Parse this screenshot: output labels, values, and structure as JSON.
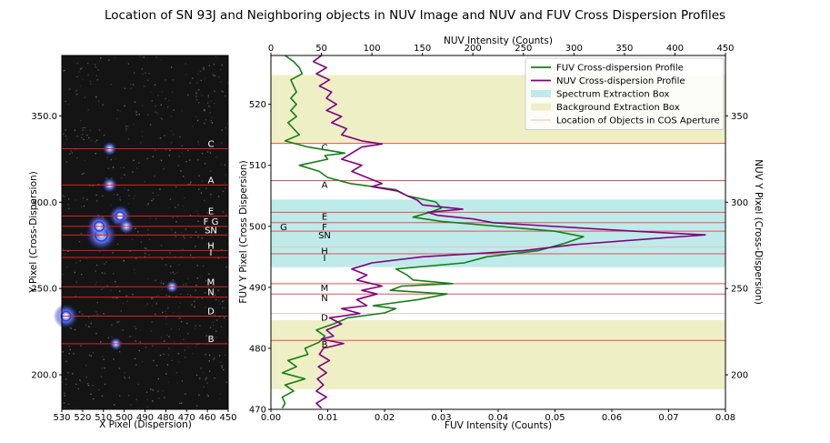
{
  "title": "Location of SN 93J and Neighboring objects in NUV Image and NUV and FUV Cross Dispersion Profiles",
  "chart_data": [
    {
      "type": "image",
      "xlabel": "X Pixel (Dispersion)",
      "ylabel": "Y Pixel (Cross-Dispersion)",
      "xlim": [
        530,
        450
      ],
      "ylim": [
        180,
        385
      ],
      "xticks": [
        "530",
        "520",
        "510",
        "500",
        "490",
        "480",
        "470",
        "460",
        "450"
      ],
      "yticks": [
        "200.0",
        "250.0",
        "300.0",
        "350.0"
      ],
      "object_lines": [
        {
          "label": "C",
          "y": 331
        },
        {
          "label": "A",
          "y": 310
        },
        {
          "label": "E",
          "y": 292
        },
        {
          "label": "F G",
          "y": 286
        },
        {
          "label": "SN",
          "y": 281
        },
        {
          "label": "H",
          "y": 272
        },
        {
          "label": "I",
          "y": 268
        },
        {
          "label": "M",
          "y": 251
        },
        {
          "label": "N",
          "y": 245
        },
        {
          "label": "D",
          "y": 234
        },
        {
          "label": "B",
          "y": 218
        }
      ],
      "sources": [
        {
          "x": 511,
          "y": 281,
          "strength": 1.0
        },
        {
          "x": 512,
          "y": 286,
          "strength": 0.7
        },
        {
          "x": 502,
          "y": 292,
          "strength": 0.6
        },
        {
          "x": 528,
          "y": 234,
          "strength": 0.7
        },
        {
          "x": 507,
          "y": 310,
          "strength": 0.3
        },
        {
          "x": 507,
          "y": 331,
          "strength": 0.25
        },
        {
          "x": 499,
          "y": 286,
          "strength": 0.3
        },
        {
          "x": 477,
          "y": 251,
          "strength": 0.2
        },
        {
          "x": 504,
          "y": 218,
          "strength": 0.2
        }
      ]
    },
    {
      "type": "line",
      "xlabel": "FUV Intensity (Counts)",
      "ylabel": "FUV Y Pixel (Cross Dispersion)",
      "x2label": "NUV Intensity (Counts)",
      "y2label": "NUV Y Pixel (Cross-Dispersion)",
      "xlim": [
        0.0,
        0.08
      ],
      "ylim": [
        470,
        528
      ],
      "x2lim": [
        0,
        450
      ],
      "y2lim": [
        180,
        385
      ],
      "xticks": [
        "0.00",
        "0.01",
        "0.02",
        "0.03",
        "0.04",
        "0.05",
        "0.06",
        "0.07",
        "0.08"
      ],
      "yticks": [
        "470",
        "480",
        "490",
        "500",
        "510",
        "520"
      ],
      "x2ticks": [
        "0",
        "50",
        "100",
        "150",
        "200",
        "250",
        "300",
        "350",
        "400",
        "450"
      ],
      "y2ticks": [
        "200",
        "250",
        "300",
        "350"
      ],
      "legend": {
        "placement": "top-right",
        "entries": [
          {
            "label": "FUV Cross-dispersion Profile",
            "kind": "line",
            "color": "#138013"
          },
          {
            "label": "NUV Cross-dispersion Profile",
            "kind": "line",
            "color": "#800080"
          },
          {
            "label": "Spectrum Extraction Box",
            "kind": "patch",
            "color": "#bfeaea"
          },
          {
            "label": "Background Extraction Box",
            "kind": "patch",
            "color": "#efefc6"
          },
          {
            "label": "Location of Objects in COS Aperture",
            "kind": "line",
            "color": "#f4b9b9"
          }
        ]
      },
      "background_boxes": [
        [
          473.3,
          484.6
        ],
        [
          513.5,
          524.8
        ]
      ],
      "spectrum_box": [
        493.3,
        504.4
      ],
      "object_lines": [
        {
          "label": "C",
          "y": 513.6
        },
        {
          "label": "A",
          "y": 507.5
        },
        {
          "label": "E",
          "y": 502.3
        },
        {
          "label": "F",
          "y": 500.6
        },
        {
          "label": "G",
          "y": 500.6,
          "left": true
        },
        {
          "label": "SN",
          "y": 499.2
        },
        {
          "label": "H",
          "y": 496.6
        },
        {
          "label": "I",
          "y": 495.5
        },
        {
          "label": "M",
          "y": 490.6
        },
        {
          "label": "N",
          "y": 488.9
        },
        {
          "label": "D",
          "y": 485.7
        },
        {
          "label": "B",
          "y": 481.3
        }
      ],
      "series": [
        {
          "name": "FUV Cross-dispersion Profile",
          "color": "#138013",
          "points": [
            [
              0.002,
              470.2
            ],
            [
              0.0025,
              471
            ],
            [
              0.002,
              472
            ],
            [
              0.004,
              473
            ],
            [
              0.0025,
              474
            ],
            [
              0.006,
              475
            ],
            [
              0.002,
              476
            ],
            [
              0.0045,
              477
            ],
            [
              0.003,
              478
            ],
            [
              0.0065,
              479
            ],
            [
              0.006,
              480
            ],
            [
              0.0085,
              481
            ],
            [
              0.0095,
              482
            ],
            [
              0.008,
              483
            ],
            [
              0.011,
              484
            ],
            [
              0.0135,
              485
            ],
            [
              0.02,
              485.8
            ],
            [
              0.022,
              486.5
            ],
            [
              0.018,
              487
            ],
            [
              0.026,
              488
            ],
            [
              0.031,
              488.9
            ],
            [
              0.021,
              489.5
            ],
            [
              0.023,
              490.2
            ],
            [
              0.032,
              490.6
            ],
            [
              0.025,
              491.2
            ],
            [
              0.024,
              492
            ],
            [
              0.022,
              493
            ],
            [
              0.034,
              494
            ],
            [
              0.038,
              495
            ],
            [
              0.047,
              496
            ],
            [
              0.052,
              497.3
            ],
            [
              0.055,
              498.3
            ],
            [
              0.05,
              499.2
            ],
            [
              0.04,
              500
            ],
            [
              0.03,
              500.8
            ],
            [
              0.025,
              501.5
            ],
            [
              0.028,
              502.3
            ],
            [
              0.03,
              503
            ],
            [
              0.029,
              504
            ],
            [
              0.024,
              505
            ],
            [
              0.022,
              506
            ],
            [
              0.014,
              507
            ],
            [
              0.01,
              508
            ],
            [
              0.0085,
              509
            ],
            [
              0.005,
              510
            ],
            [
              0.01,
              511
            ],
            [
              0.0095,
              511.6
            ],
            [
              0.013,
              512
            ],
            [
              0.0065,
              513
            ],
            [
              0.0025,
              514
            ],
            [
              0.005,
              515
            ],
            [
              0.004,
              516
            ],
            [
              0.003,
              517
            ],
            [
              0.0045,
              518
            ],
            [
              0.0035,
              519
            ],
            [
              0.0045,
              520
            ],
            [
              0.0035,
              521
            ],
            [
              0.0045,
              522
            ],
            [
              0.004,
              523
            ],
            [
              0.0035,
              524
            ],
            [
              0.0055,
              525
            ],
            [
              0.005,
              526
            ],
            [
              0.004,
              527
            ],
            [
              0.0025,
              528
            ]
          ]
        },
        {
          "name": "NUV Cross-dispersion Profile",
          "color": "#800080",
          "points": [
            [
              50,
              470.2
            ],
            [
              45,
              471
            ],
            [
              55,
              472
            ],
            [
              45,
              473
            ],
            [
              52,
              474
            ],
            [
              46,
              475
            ],
            [
              55,
              476
            ],
            [
              47,
              477
            ],
            [
              58,
              478
            ],
            [
              48,
              479
            ],
            [
              52,
              480
            ],
            [
              72,
              480.8
            ],
            [
              50,
              481.5
            ],
            [
              62,
              482
            ],
            [
              55,
              483
            ],
            [
              70,
              484
            ],
            [
              58,
              485
            ],
            [
              88,
              485.7
            ],
            [
              70,
              486.5
            ],
            [
              95,
              487
            ],
            [
              85,
              488
            ],
            [
              105,
              488.9
            ],
            [
              90,
              489.5
            ],
            [
              110,
              490.2
            ],
            [
              100,
              490.6
            ],
            [
              85,
              491.2
            ],
            [
              95,
              492
            ],
            [
              80,
              493
            ],
            [
              100,
              494
            ],
            [
              150,
              495
            ],
            [
              250,
              496
            ],
            [
              300,
              497
            ],
            [
              380,
              498
            ],
            [
              430,
              498.6
            ],
            [
              360,
              499.2
            ],
            [
              260,
              500.2
            ],
            [
              220,
              500.6
            ],
            [
              200,
              501.2
            ],
            [
              165,
              501.8
            ],
            [
              155,
              502.3
            ],
            [
              190,
              502.8
            ],
            [
              150,
              503.5
            ],
            [
              145,
              504.3
            ],
            [
              135,
              505
            ],
            [
              125,
              505.8
            ],
            [
              100,
              506.5
            ],
            [
              110,
              507
            ],
            [
              95,
              508
            ],
            [
              80,
              509
            ],
            [
              90,
              510
            ],
            [
              70,
              511
            ],
            [
              80,
              512
            ],
            [
              90,
              513
            ],
            [
              110,
              513.5
            ],
            [
              90,
              514
            ],
            [
              70,
              515
            ],
            [
              75,
              516
            ],
            [
              60,
              517
            ],
            [
              70,
              518
            ],
            [
              55,
              519
            ],
            [
              65,
              520
            ],
            [
              55,
              521
            ],
            [
              60,
              522
            ],
            [
              48,
              523
            ],
            [
              58,
              524
            ],
            [
              45,
              525
            ],
            [
              55,
              526
            ],
            [
              42,
              527
            ],
            [
              50,
              528
            ]
          ]
        }
      ]
    }
  ]
}
